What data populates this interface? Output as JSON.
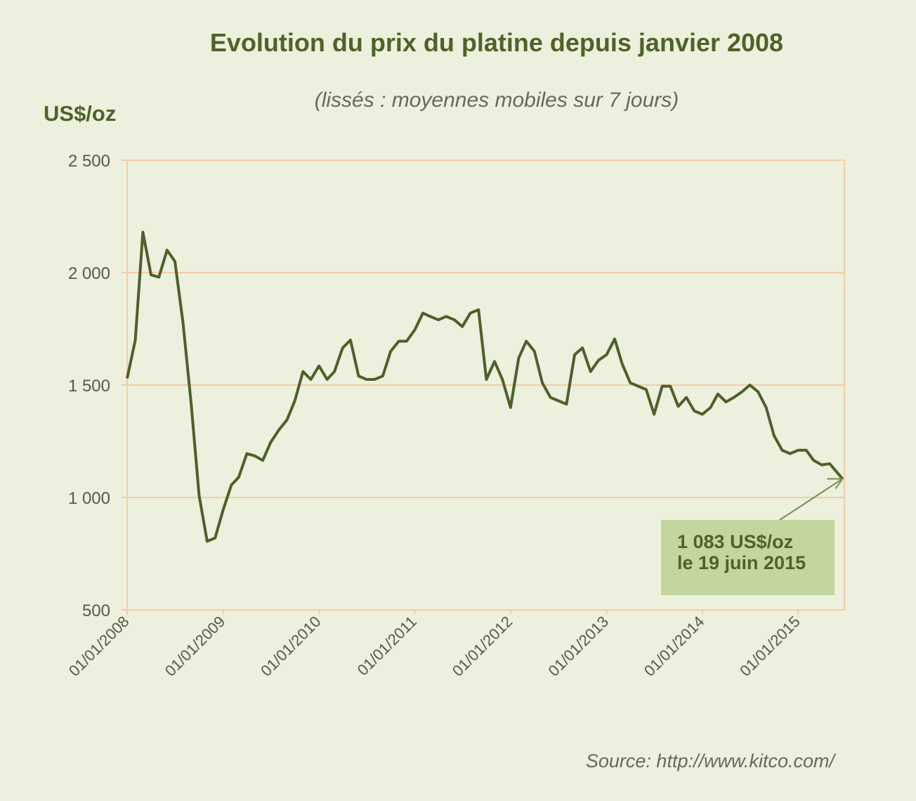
{
  "chart_data": {
    "type": "line",
    "title": "Evolution du prix du platine depuis janvier 2008",
    "subtitle": "(lissés :  moyennes mobiles sur 7 jours)",
    "ylabel": "US$/oz",
    "xlabel": "",
    "source": "Source:  http://www.kitco.com/",
    "ylim": [
      500,
      2500
    ],
    "xlim": [
      "2008-01-01",
      "2015-06-19"
    ],
    "yticks": [
      500,
      1000,
      1500,
      2000,
      2500
    ],
    "ytick_labels": [
      "500",
      "1 000",
      "1 500",
      "2 000",
      "2 500"
    ],
    "xticks": [
      "2008-01-01",
      "2009-01-01",
      "2010-01-01",
      "2011-01-01",
      "2012-01-01",
      "2013-01-01",
      "2014-01-01",
      "2015-01-01"
    ],
    "xtick_labels": [
      "01/01/2008",
      "01/01/2009",
      "01/01/2010",
      "01/01/2011",
      "01/01/2012",
      "01/01/2013",
      "01/01/2014",
      "01/01/2015"
    ],
    "grid": {
      "horizontal": true,
      "vertical": false
    },
    "colors": {
      "line": "#4f5f2a",
      "grid": "#f5cba8",
      "background": "#ecf0dd",
      "annotation_box": "#c3d69b",
      "title": "#4f6228"
    },
    "annotation": {
      "line1": "1 083 US$/oz",
      "line2": "le 19 juin 2015",
      "date": "2015-06-19",
      "value": 1083
    },
    "series": [
      {
        "dates": [
          "2008-01-01",
          "2008-02-01",
          "2008-03-01",
          "2008-04-01",
          "2008-05-01",
          "2008-06-01",
          "2008-07-01",
          "2008-08-01",
          "2008-09-01",
          "2008-10-01",
          "2008-11-01",
          "2008-12-01",
          "2009-01-01",
          "2009-02-01",
          "2009-03-01",
          "2009-04-01",
          "2009-05-01",
          "2009-06-01",
          "2009-07-01",
          "2009-08-01",
          "2009-09-01",
          "2009-10-01",
          "2009-11-01",
          "2009-12-01",
          "2010-01-01",
          "2010-02-01",
          "2010-03-01",
          "2010-04-01",
          "2010-05-01",
          "2010-06-01",
          "2010-07-01",
          "2010-08-01",
          "2010-09-01",
          "2010-10-01",
          "2010-11-01",
          "2010-12-01",
          "2011-01-01",
          "2011-02-01",
          "2011-03-01",
          "2011-04-01",
          "2011-05-01",
          "2011-06-01",
          "2011-07-01",
          "2011-08-01",
          "2011-09-01",
          "2011-10-01",
          "2011-11-01",
          "2011-12-01",
          "2012-01-01",
          "2012-02-01",
          "2012-03-01",
          "2012-04-01",
          "2012-05-01",
          "2012-06-01",
          "2012-07-01",
          "2012-08-01",
          "2012-09-01",
          "2012-10-01",
          "2012-11-01",
          "2012-12-01",
          "2013-01-01",
          "2013-02-01",
          "2013-03-01",
          "2013-04-01",
          "2013-05-01",
          "2013-06-01",
          "2013-07-01",
          "2013-08-01",
          "2013-09-01",
          "2013-10-01",
          "2013-11-01",
          "2013-12-01",
          "2014-01-01",
          "2014-02-01",
          "2014-03-01",
          "2014-04-01",
          "2014-05-01",
          "2014-06-01",
          "2014-07-01",
          "2014-08-01",
          "2014-09-01",
          "2014-10-01",
          "2014-11-01",
          "2014-12-01",
          "2015-01-01",
          "2015-02-01",
          "2015-03-01",
          "2015-04-01",
          "2015-05-01",
          "2015-06-19"
        ],
        "values": [
          1530,
          1700,
          2180,
          1990,
          1980,
          2100,
          2050,
          1775,
          1415,
          1010,
          805,
          820,
          945,
          1055,
          1090,
          1195,
          1185,
          1165,
          1245,
          1300,
          1345,
          1430,
          1560,
          1525,
          1585,
          1525,
          1560,
          1665,
          1700,
          1540,
          1525,
          1525,
          1540,
          1650,
          1695,
          1695,
          1745,
          1820,
          1805,
          1790,
          1805,
          1790,
          1760,
          1820,
          1835,
          1525,
          1605,
          1525,
          1400,
          1620,
          1695,
          1650,
          1510,
          1445,
          1430,
          1415,
          1635,
          1665,
          1560,
          1610,
          1635,
          1705,
          1595,
          1510,
          1495,
          1480,
          1370,
          1495,
          1495,
          1405,
          1445,
          1385,
          1370,
          1400,
          1460,
          1425,
          1445,
          1470,
          1500,
          1470,
          1400,
          1275,
          1210,
          1195,
          1210,
          1210,
          1165,
          1145,
          1150,
          1083
        ]
      }
    ]
  }
}
